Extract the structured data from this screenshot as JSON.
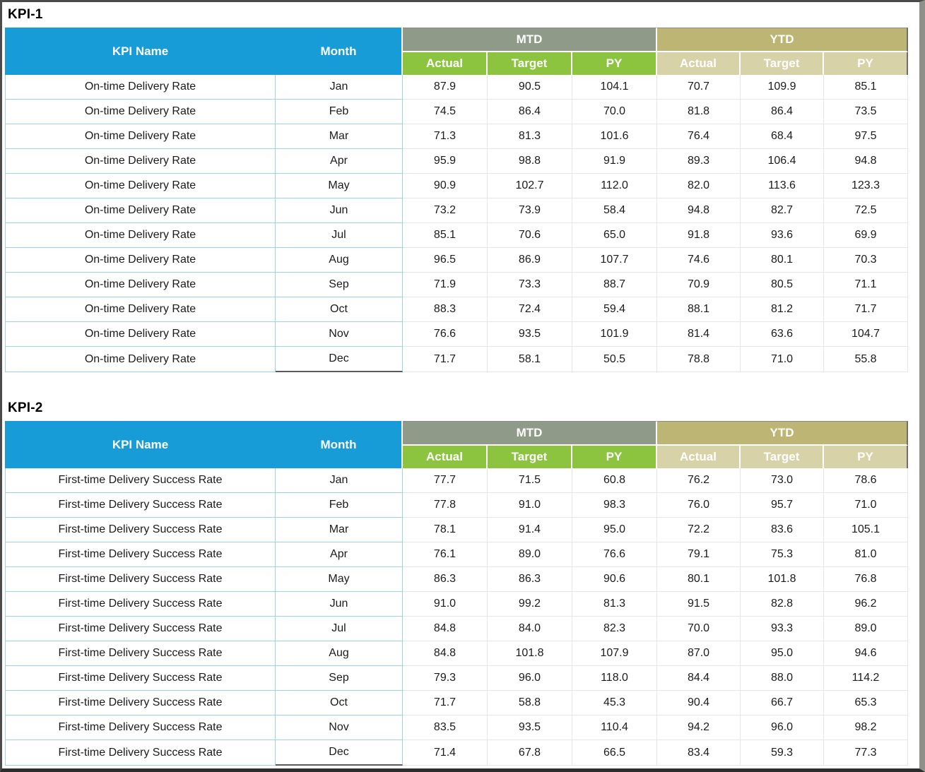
{
  "colors": {
    "header_blue": "#179CD8",
    "mtd_group_bg": "#8F9A88",
    "mtd_sub_bg": "#8CC43F",
    "ytd_group_bg": "#BDB573",
    "ytd_sub_bg": "#D8D2A9",
    "grid_cyan": "#9BD4E6",
    "grid_gray": "#E6E6E6",
    "last_row_month_border": "#5A5A5A"
  },
  "sections": [
    {
      "title": "KPI-1",
      "header": {
        "kpi_name": "KPI Name",
        "month": "Month",
        "mtd": "MTD",
        "ytd": "YTD",
        "subheaders": [
          "Actual",
          "Target",
          "PY"
        ]
      },
      "rows": [
        [
          "On-time Delivery Rate",
          "Jan",
          "87.9",
          "90.5",
          "104.1",
          "70.7",
          "109.9",
          "85.1"
        ],
        [
          "On-time Delivery Rate",
          "Feb",
          "74.5",
          "86.4",
          "70.0",
          "81.8",
          "86.4",
          "73.5"
        ],
        [
          "On-time Delivery Rate",
          "Mar",
          "71.3",
          "81.3",
          "101.6",
          "76.4",
          "68.4",
          "97.5"
        ],
        [
          "On-time Delivery Rate",
          "Apr",
          "95.9",
          "98.8",
          "91.9",
          "89.3",
          "106.4",
          "94.8"
        ],
        [
          "On-time Delivery Rate",
          "May",
          "90.9",
          "102.7",
          "112.0",
          "82.0",
          "113.6",
          "123.3"
        ],
        [
          "On-time Delivery Rate",
          "Jun",
          "73.2",
          "73.9",
          "58.4",
          "94.8",
          "82.7",
          "72.5"
        ],
        [
          "On-time Delivery Rate",
          "Jul",
          "85.1",
          "70.6",
          "65.0",
          "91.8",
          "93.6",
          "69.9"
        ],
        [
          "On-time Delivery Rate",
          "Aug",
          "96.5",
          "86.9",
          "107.7",
          "74.6",
          "80.1",
          "70.3"
        ],
        [
          "On-time Delivery Rate",
          "Sep",
          "71.9",
          "73.3",
          "88.7",
          "70.9",
          "80.5",
          "71.1"
        ],
        [
          "On-time Delivery Rate",
          "Oct",
          "88.3",
          "72.4",
          "59.4",
          "88.1",
          "81.2",
          "71.7"
        ],
        [
          "On-time Delivery Rate",
          "Nov",
          "76.6",
          "93.5",
          "101.9",
          "81.4",
          "63.6",
          "104.7"
        ],
        [
          "On-time Delivery Rate",
          "Dec",
          "71.7",
          "58.1",
          "50.5",
          "78.8",
          "71.0",
          "55.8"
        ]
      ]
    },
    {
      "title": "KPI-2",
      "header": {
        "kpi_name": "KPI Name",
        "month": "Month",
        "mtd": "MTD",
        "ytd": "YTD",
        "subheaders": [
          "Actual",
          "Target",
          "PY"
        ]
      },
      "rows": [
        [
          "First-time Delivery Success Rate",
          "Jan",
          "77.7",
          "71.5",
          "60.8",
          "76.2",
          "73.0",
          "78.6"
        ],
        [
          "First-time Delivery Success Rate",
          "Feb",
          "77.8",
          "91.0",
          "98.3",
          "76.0",
          "95.7",
          "71.0"
        ],
        [
          "First-time Delivery Success Rate",
          "Mar",
          "78.1",
          "91.4",
          "95.0",
          "72.2",
          "83.6",
          "105.1"
        ],
        [
          "First-time Delivery Success Rate",
          "Apr",
          "76.1",
          "89.0",
          "76.6",
          "79.1",
          "75.3",
          "81.0"
        ],
        [
          "First-time Delivery Success Rate",
          "May",
          "86.3",
          "86.3",
          "90.6",
          "80.1",
          "101.8",
          "76.8"
        ],
        [
          "First-time Delivery Success Rate",
          "Jun",
          "91.0",
          "99.2",
          "81.3",
          "91.5",
          "82.8",
          "96.2"
        ],
        [
          "First-time Delivery Success Rate",
          "Jul",
          "84.8",
          "84.0",
          "82.3",
          "70.0",
          "93.3",
          "89.0"
        ],
        [
          "First-time Delivery Success Rate",
          "Aug",
          "84.8",
          "101.8",
          "107.9",
          "87.0",
          "95.0",
          "94.6"
        ],
        [
          "First-time Delivery Success Rate",
          "Sep",
          "79.3",
          "96.0",
          "118.0",
          "84.4",
          "88.0",
          "114.2"
        ],
        [
          "First-time Delivery Success Rate",
          "Oct",
          "71.7",
          "58.8",
          "45.3",
          "90.4",
          "66.7",
          "65.3"
        ],
        [
          "First-time Delivery Success Rate",
          "Nov",
          "83.5",
          "93.5",
          "110.4",
          "94.2",
          "96.0",
          "98.2"
        ],
        [
          "First-time Delivery Success Rate",
          "Dec",
          "71.4",
          "67.8",
          "66.5",
          "83.4",
          "59.3",
          "77.3"
        ]
      ]
    }
  ]
}
